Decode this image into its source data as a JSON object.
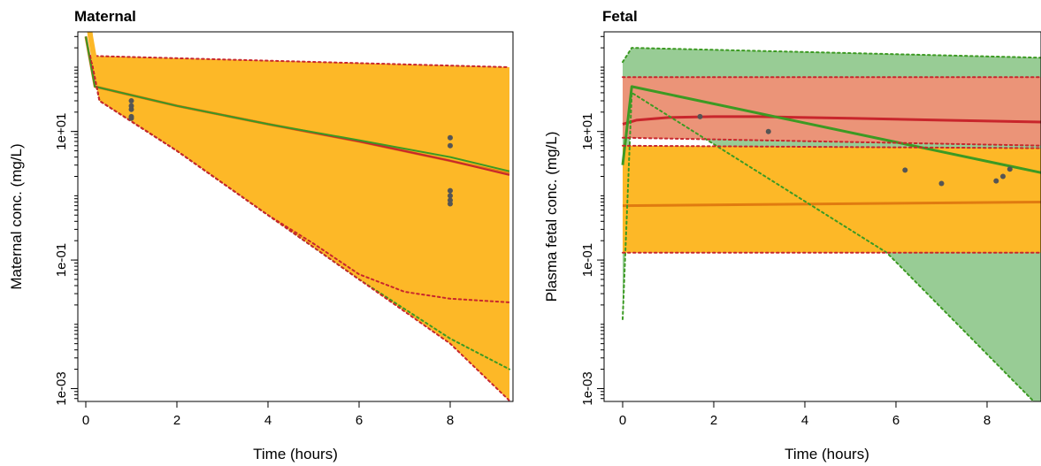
{
  "chart_data": [
    {
      "type": "line",
      "title": "Maternal",
      "xlabel": "Time (hours)",
      "ylabel": "Maternal conc. (mg/L)",
      "xlim": [
        0,
        9.3
      ],
      "ylim_log10": [
        -3.2,
        2.55
      ],
      "y_scale": "log10",
      "grid": false,
      "x_ticks": [
        0,
        2,
        4,
        6,
        8
      ],
      "x_tick_labels": [
        "0",
        "2",
        "4",
        "6",
        "8"
      ],
      "y_ticks": [
        0.001,
        0.1,
        10
      ],
      "y_tick_labels": [
        "1e-03",
        "1e-01",
        "1e+01"
      ],
      "bands": [
        {
          "color": "#fdb827",
          "upper": {
            "x": [
              0.1,
              9.3
            ],
            "y": [
              150,
              100
            ]
          },
          "lower": {
            "x": [
              0.1,
              0.3,
              2,
              4,
              6,
              8,
              9.3
            ],
            "y": [
              150,
              30,
              5,
              0.5,
              0.05,
              0.005,
              0.00065
            ]
          }
        }
      ],
      "series": [
        {
          "color": "#e07b10",
          "style": "solid",
          "width": 3,
          "x": [
            0,
            0.2,
            2,
            4,
            6,
            8,
            9.3
          ],
          "y": [
            300,
            50,
            25,
            13,
            7,
            3.5,
            2.2
          ]
        },
        {
          "color": "#c8262c",
          "style": "solid",
          "width": 2,
          "x": [
            0,
            0.2,
            2,
            4,
            6,
            8,
            9.3
          ],
          "y": [
            300,
            50,
            25,
            13,
            7,
            3.5,
            2.1
          ]
        },
        {
          "color": "#3c9a23",
          "style": "solid",
          "width": 2,
          "x": [
            0,
            0.2,
            2,
            4,
            6,
            8,
            9.3
          ],
          "y": [
            300,
            50,
            25,
            13,
            7.3,
            4,
            2.4
          ]
        },
        {
          "color": "#3c9a23",
          "style": "dotted",
          "width": 2,
          "x": [
            0.1,
            0.3,
            2,
            4,
            6,
            8,
            9.3
          ],
          "y": [
            150,
            30,
            5,
            0.5,
            0.05,
            0.006,
            0.002
          ]
        },
        {
          "color": "#c8262c",
          "style": "dotted",
          "width": 2,
          "x": [
            0.1,
            0.3,
            2,
            4,
            5,
            6,
            7,
            8,
            9.3
          ],
          "y": [
            150,
            30,
            5,
            0.5,
            0.18,
            0.06,
            0.032,
            0.025,
            0.022
          ]
        },
        {
          "color": "#c8262c",
          "style": "dotted",
          "width": 2,
          "x": [
            0.1,
            9.3
          ],
          "y": [
            150,
            100
          ]
        },
        {
          "color": "#c8262c",
          "style": "dotted",
          "width": 2,
          "x": [
            0.1,
            0.3,
            2,
            4,
            6,
            8,
            9.3
          ],
          "y": [
            150,
            30,
            5,
            0.5,
            0.05,
            0.005,
            0.00065
          ]
        },
        {
          "color": "#fdb827",
          "style": "solid",
          "width": 6,
          "x": [
            0.05,
            0.1,
            0.2
          ],
          "y": [
            600,
            300,
            120
          ]
        }
      ],
      "points": {
        "color": "#555555",
        "x": [
          1,
          1,
          1,
          1,
          1,
          8,
          8,
          8,
          8,
          8,
          8
        ],
        "y": [
          30,
          25,
          22,
          17,
          16,
          8,
          6,
          1.2,
          1.0,
          0.85,
          0.75
        ]
      }
    },
    {
      "type": "line",
      "title": "Fetal",
      "xlabel": "Time (hours)",
      "ylabel": "Plasma fetal conc. (mg/L)",
      "xlim": [
        0,
        9.3
      ],
      "ylim_log10": [
        -3.2,
        2.55
      ],
      "y_scale": "log10",
      "grid": false,
      "x_ticks": [
        0,
        2,
        4,
        6,
        8
      ],
      "x_tick_labels": [
        "0",
        "2",
        "4",
        "6",
        "8"
      ],
      "y_ticks": [
        0.001,
        0.1,
        10
      ],
      "y_tick_labels": [
        "1e-03",
        "1e-01",
        "1e+01"
      ],
      "bands": [
        {
          "color": "#98cc95",
          "upper": {
            "x": [
              0,
              0.2,
              9.3
            ],
            "y": [
              120,
              200,
              140
            ]
          },
          "lower": {
            "x": [
              0,
              0.2,
              5.8,
              9.3
            ],
            "y": [
              0.012,
              40,
              0.13,
              0.0004
            ]
          }
        },
        {
          "color": "#eb9478",
          "upper": {
            "x": [
              0,
              9.3
            ],
            "y": [
              70,
              70
            ]
          },
          "lower": {
            "x": [
              0,
              9.3
            ],
            "y": [
              8,
              6
            ]
          }
        },
        {
          "color": "#fdb827",
          "upper": {
            "x": [
              0,
              9.3
            ],
            "y": [
              6,
              5.5
            ]
          },
          "lower": {
            "x": [
              0,
              9.3
            ],
            "y": [
              0.13,
              0.13
            ]
          }
        }
      ],
      "series": [
        {
          "color": "#c8262c",
          "style": "solid",
          "width": 3,
          "x": [
            0,
            0.3,
            1,
            2,
            3,
            5,
            7,
            9.3
          ],
          "y": [
            13,
            15,
            16.5,
            17,
            17,
            16,
            15,
            14
          ]
        },
        {
          "color": "#e07b10",
          "style": "solid",
          "width": 3,
          "x": [
            0,
            9.3
          ],
          "y": [
            0.7,
            0.8
          ]
        },
        {
          "color": "#3c9a23",
          "style": "solid",
          "width": 3,
          "x": [
            0,
            0.2,
            9.3
          ],
          "y": [
            3,
            50,
            2.2
          ]
        },
        {
          "color": "#3c9a23",
          "style": "dotted",
          "width": 2,
          "x": [
            0,
            0.2,
            9.3
          ],
          "y": [
            120,
            200,
            140
          ]
        },
        {
          "color": "#3c9a23",
          "style": "dotted",
          "width": 2,
          "x": [
            0,
            0.2,
            5.8,
            9.3
          ],
          "y": [
            0.012,
            40,
            0.13,
            0.0004
          ]
        },
        {
          "color": "#c8262c",
          "style": "dotted",
          "width": 2,
          "x": [
            0,
            9.3
          ],
          "y": [
            70,
            70
          ]
        },
        {
          "color": "#c8262c",
          "style": "dotted",
          "width": 2,
          "x": [
            0,
            9.3
          ],
          "y": [
            8,
            6
          ]
        },
        {
          "color": "#c8262c",
          "style": "dotted",
          "width": 2,
          "x": [
            0,
            9.3
          ],
          "y": [
            6,
            5.5
          ]
        },
        {
          "color": "#c8262c",
          "style": "dotted",
          "width": 2,
          "x": [
            0,
            9.3
          ],
          "y": [
            0.13,
            0.13
          ]
        }
      ],
      "points": {
        "color": "#555555",
        "x": [
          1.7,
          3.2,
          6.2,
          7.0,
          8.2,
          8.35,
          8.5
        ],
        "y": [
          17,
          10,
          2.5,
          1.55,
          1.7,
          2.0,
          2.6
        ]
      }
    }
  ]
}
